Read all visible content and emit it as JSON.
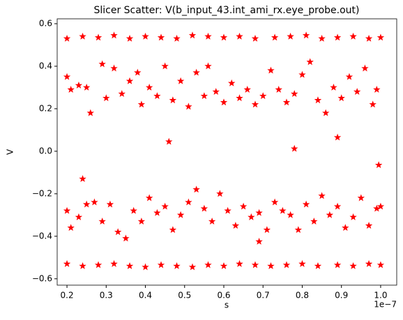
{
  "chart_data": {
    "type": "scatter",
    "title": "Slicer Scatter: V(b_input_43.int_ami_rx.eye_probe.out)",
    "xlabel": "s",
    "ylabel": "V",
    "x_offset_label": "1e−7",
    "color": "#ff0000",
    "marker": "star",
    "xlim": [
      1.75e-08,
      1.041e-07
    ],
    "ylim": [
      -0.63,
      0.623
    ],
    "xticks": [
      {
        "value": 2e-08,
        "label": "0.2"
      },
      {
        "value": 3e-08,
        "label": "0.3"
      },
      {
        "value": 4e-08,
        "label": "0.4"
      },
      {
        "value": 5e-08,
        "label": "0.5"
      },
      {
        "value": 6e-08,
        "label": "0.6"
      },
      {
        "value": 7e-08,
        "label": "0.7"
      },
      {
        "value": 8e-08,
        "label": "0.8"
      },
      {
        "value": 9e-08,
        "label": "0.9"
      },
      {
        "value": 1e-07,
        "label": "1.0"
      }
    ],
    "yticks": [
      {
        "value": -0.6,
        "label": "−0.6"
      },
      {
        "value": -0.4,
        "label": "−0.4"
      },
      {
        "value": -0.2,
        "label": "−0.2"
      },
      {
        "value": 0,
        "label": "0.0"
      },
      0.2,
      0.4,
      0.6
    ],
    "x": [
      2e-08,
      2.4e-08,
      2.8e-08,
      3.2e-08,
      3.6e-08,
      4e-08,
      4.4e-08,
      4.8e-08,
      5.2e-08,
      5.6e-08,
      6e-08,
      6.4e-08,
      6.8e-08,
      7.3e-08,
      7.7e-08,
      8.1e-08,
      8.5e-08,
      8.9e-08,
      9.3e-08,
      9.7e-08,
      1e-07,
      2e-08,
      2.1e-08,
      2.3e-08,
      2.5e-08,
      2.6e-08,
      2.9e-08,
      3e-08,
      3.2e-08,
      3.4e-08,
      3.6e-08,
      3.8e-08,
      3.9e-08,
      4.1e-08,
      4.3e-08,
      4.5e-08,
      4.7e-08,
      4.9e-08,
      5.1e-08,
      5.3e-08,
      5.5e-08,
      5.6e-08,
      5.8e-08,
      6e-08,
      6.2e-08,
      6.4e-08,
      6.6e-08,
      6.8e-08,
      7e-08,
      7.2e-08,
      7.4e-08,
      7.6e-08,
      7.8e-08,
      8e-08,
      8.2e-08,
      8.4e-08,
      8.6e-08,
      8.8e-08,
      9e-08,
      9.2e-08,
      9.4e-08,
      9.6e-08,
      9.8e-08,
      9.9e-08,
      4.6e-08,
      7.8e-08,
      8.9e-08,
      9.95e-08,
      2.4e-08,
      6.9e-08,
      2e-08,
      2.1e-08,
      2.3e-08,
      2.5e-08,
      2.7e-08,
      2.9e-08,
      3.1e-08,
      3.3e-08,
      3.5e-08,
      3.7e-08,
      3.9e-08,
      4.1e-08,
      4.3e-08,
      4.5e-08,
      4.7e-08,
      4.9e-08,
      5.1e-08,
      5.3e-08,
      5.5e-08,
      5.7e-08,
      5.9e-08,
      6.1e-08,
      6.3e-08,
      6.5e-08,
      6.7e-08,
      6.9e-08,
      7.1e-08,
      7.3e-08,
      7.5e-08,
      7.7e-08,
      7.9e-08,
      8.1e-08,
      8.3e-08,
      8.5e-08,
      8.7e-08,
      8.9e-08,
      9.1e-08,
      9.3e-08,
      9.5e-08,
      9.7e-08,
      9.9e-08,
      1e-07,
      2e-08,
      2.4e-08,
      2.8e-08,
      3.2e-08,
      3.6e-08,
      4e-08,
      4.4e-08,
      4.8e-08,
      5.2e-08,
      5.6e-08,
      6e-08,
      6.4e-08,
      6.8e-08,
      7.2e-08,
      7.6e-08,
      8e-08,
      8.4e-08,
      8.9e-08,
      9.3e-08,
      9.7e-08,
      1e-07
    ],
    "values": [
      0.53,
      0.54,
      0.535,
      0.545,
      0.53,
      0.54,
      0.535,
      0.53,
      0.545,
      0.54,
      0.535,
      0.54,
      0.53,
      0.535,
      0.54,
      0.545,
      0.53,
      0.535,
      0.54,
      0.53,
      0.535,
      0.35,
      0.29,
      0.31,
      0.3,
      0.18,
      0.41,
      0.25,
      0.39,
      0.27,
      0.33,
      0.37,
      0.22,
      0.3,
      0.26,
      0.4,
      0.24,
      0.33,
      0.21,
      0.37,
      0.26,
      0.4,
      0.28,
      0.23,
      0.32,
      0.25,
      0.29,
      0.22,
      0.26,
      0.38,
      0.29,
      0.23,
      0.27,
      0.36,
      0.42,
      0.24,
      0.18,
      0.3,
      0.25,
      0.35,
      0.28,
      0.39,
      0.22,
      0.29,
      0.045,
      0.012,
      0.065,
      -0.065,
      -0.13,
      -0.425,
      -0.28,
      -0.36,
      -0.31,
      -0.25,
      -0.24,
      -0.33,
      -0.25,
      -0.38,
      -0.41,
      -0.28,
      -0.33,
      -0.22,
      -0.29,
      -0.26,
      -0.37,
      -0.3,
      -0.24,
      -0.18,
      -0.27,
      -0.33,
      -0.2,
      -0.28,
      -0.35,
      -0.26,
      -0.31,
      -0.29,
      -0.37,
      -0.24,
      -0.28,
      -0.3,
      -0.37,
      -0.25,
      -0.33,
      -0.21,
      -0.3,
      -0.26,
      -0.36,
      -0.31,
      -0.22,
      -0.35,
      -0.27,
      -0.26,
      -0.53,
      -0.54,
      -0.535,
      -0.53,
      -0.54,
      -0.545,
      -0.535,
      -0.54,
      -0.545,
      -0.535,
      -0.54,
      -0.53,
      -0.535,
      -0.54,
      -0.535,
      -0.53,
      -0.54,
      -0.535,
      -0.54,
      -0.53,
      -0.535
    ]
  }
}
